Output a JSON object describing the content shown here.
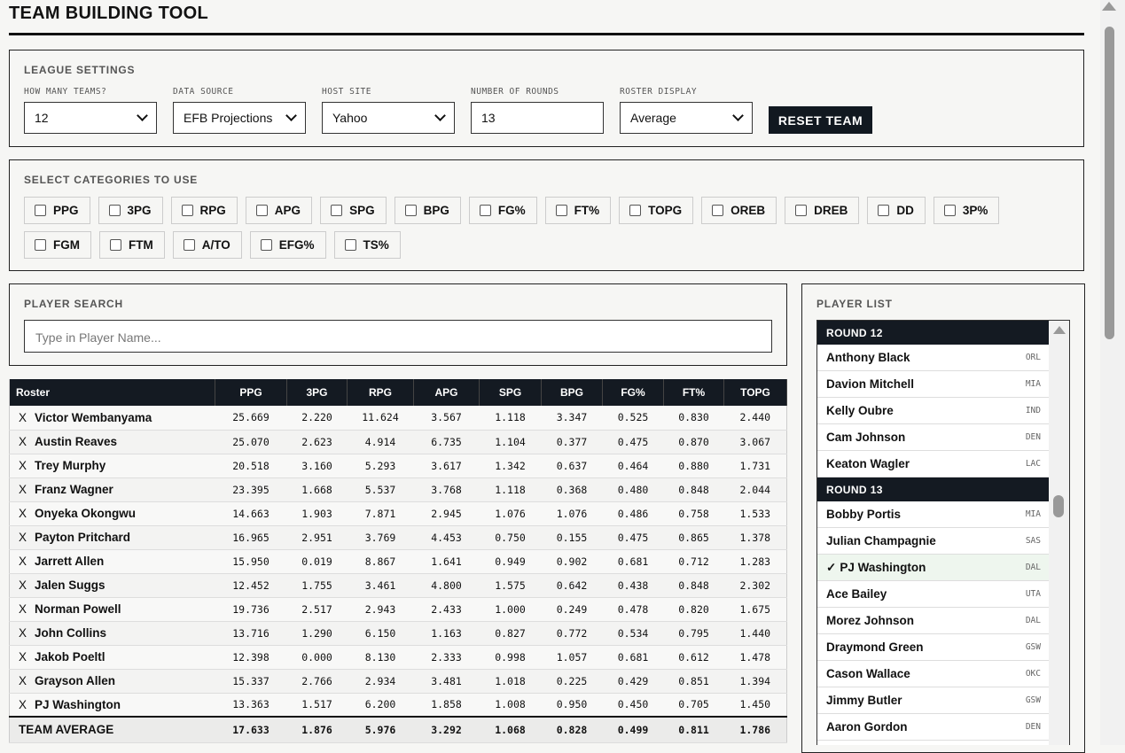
{
  "header": {
    "title": "TEAM BUILDING TOOL"
  },
  "league_settings": {
    "title": "LEAGUE SETTINGS",
    "fields": [
      {
        "label": "HOW MANY TEAMS?",
        "value": "12",
        "kind": "select"
      },
      {
        "label": "DATA SOURCE",
        "value": "EFB Projections",
        "kind": "select"
      },
      {
        "label": "HOST SITE",
        "value": "Yahoo",
        "kind": "select"
      },
      {
        "label": "NUMBER OF ROUNDS",
        "value": "13",
        "kind": "input"
      },
      {
        "label": "ROSTER DISPLAY",
        "value": "Average",
        "kind": "select"
      }
    ],
    "button": "RESET TEAM"
  },
  "categories": {
    "title": "SELECT CATEGORIES TO USE",
    "items": [
      "PPG",
      "3PG",
      "RPG",
      "APG",
      "SPG",
      "BPG",
      "FG%",
      "FT%",
      "TOPG",
      "OREB",
      "DREB",
      "DD",
      "3P%",
      "FGM",
      "FTM",
      "A/TO",
      "EFG%",
      "TS%"
    ]
  },
  "player_search": {
    "title": "PLAYER SEARCH",
    "placeholder": "Type in Player Name..."
  },
  "roster": {
    "columns": [
      "Roster",
      "PPG",
      "3PG",
      "RPG",
      "APG",
      "SPG",
      "BPG",
      "FG%",
      "FT%",
      "TOPG"
    ],
    "remove": "X",
    "rows": [
      {
        "name": "Victor Wembanyama",
        "stats": [
          "25.669",
          "2.220",
          "11.624",
          "3.567",
          "1.118",
          "3.347",
          "0.525",
          "0.830",
          "2.440"
        ]
      },
      {
        "name": "Austin Reaves",
        "stats": [
          "25.070",
          "2.623",
          "4.914",
          "6.735",
          "1.104",
          "0.377",
          "0.475",
          "0.870",
          "3.067"
        ]
      },
      {
        "name": "Trey Murphy",
        "stats": [
          "20.518",
          "3.160",
          "5.293",
          "3.617",
          "1.342",
          "0.637",
          "0.464",
          "0.880",
          "1.731"
        ]
      },
      {
        "name": "Franz Wagner",
        "stats": [
          "23.395",
          "1.668",
          "5.537",
          "3.768",
          "1.118",
          "0.368",
          "0.480",
          "0.848",
          "2.044"
        ]
      },
      {
        "name": "Onyeka Okongwu",
        "stats": [
          "14.663",
          "1.903",
          "7.871",
          "2.945",
          "1.076",
          "1.076",
          "0.486",
          "0.758",
          "1.533"
        ]
      },
      {
        "name": "Payton Pritchard",
        "stats": [
          "16.965",
          "2.951",
          "3.769",
          "4.453",
          "0.750",
          "0.155",
          "0.475",
          "0.865",
          "1.378"
        ]
      },
      {
        "name": "Jarrett Allen",
        "stats": [
          "15.950",
          "0.019",
          "8.867",
          "1.641",
          "0.949",
          "0.902",
          "0.681",
          "0.712",
          "1.283"
        ]
      },
      {
        "name": "Jalen Suggs",
        "stats": [
          "12.452",
          "1.755",
          "3.461",
          "4.800",
          "1.575",
          "0.642",
          "0.438",
          "0.848",
          "2.302"
        ]
      },
      {
        "name": "Norman Powell",
        "stats": [
          "19.736",
          "2.517",
          "2.943",
          "2.433",
          "1.000",
          "0.249",
          "0.478",
          "0.820",
          "1.675"
        ]
      },
      {
        "name": "John Collins",
        "stats": [
          "13.716",
          "1.290",
          "6.150",
          "1.163",
          "0.827",
          "0.772",
          "0.534",
          "0.795",
          "1.440"
        ]
      },
      {
        "name": "Jakob Poeltl",
        "stats": [
          "12.398",
          "0.000",
          "8.130",
          "2.333",
          "0.998",
          "1.057",
          "0.681",
          "0.612",
          "1.478"
        ]
      },
      {
        "name": "Grayson Allen",
        "stats": [
          "15.337",
          "2.766",
          "2.934",
          "3.481",
          "1.018",
          "0.225",
          "0.429",
          "0.851",
          "1.394"
        ]
      },
      {
        "name": "PJ Washington",
        "stats": [
          "13.363",
          "1.517",
          "6.200",
          "1.858",
          "1.008",
          "0.950",
          "0.450",
          "0.705",
          "1.450"
        ]
      }
    ],
    "footer": {
      "label": "TEAM AVERAGE",
      "stats": [
        "17.633",
        "1.876",
        "5.976",
        "3.292",
        "1.068",
        "0.828",
        "0.499",
        "0.811",
        "1.786"
      ]
    }
  },
  "player_list": {
    "title": "PLAYER LIST",
    "groups": [
      {
        "round": "ROUND 12",
        "players": [
          {
            "name": "Anthony Black",
            "team": "ORL"
          },
          {
            "name": "Davion Mitchell",
            "team": "MIA"
          },
          {
            "name": "Kelly Oubre",
            "team": "IND"
          },
          {
            "name": "Cam Johnson",
            "team": "DEN"
          },
          {
            "name": "Keaton Wagler",
            "team": "LAC"
          }
        ]
      },
      {
        "round": "ROUND 13",
        "players": [
          {
            "name": "Bobby Portis",
            "team": "MIA"
          },
          {
            "name": "Julian Champagnie",
            "team": "SAS"
          },
          {
            "name": "PJ Washington",
            "team": "DAL",
            "check": "✓"
          },
          {
            "name": "Ace Bailey",
            "team": "UTA"
          },
          {
            "name": "Morez Johnson",
            "team": "DAL"
          },
          {
            "name": "Draymond Green",
            "team": "GSW"
          },
          {
            "name": "Cason Wallace",
            "team": "OKC"
          },
          {
            "name": "Jimmy Butler",
            "team": "GSW"
          },
          {
            "name": "Aaron Gordon",
            "team": "DEN"
          }
        ]
      }
    ]
  }
}
